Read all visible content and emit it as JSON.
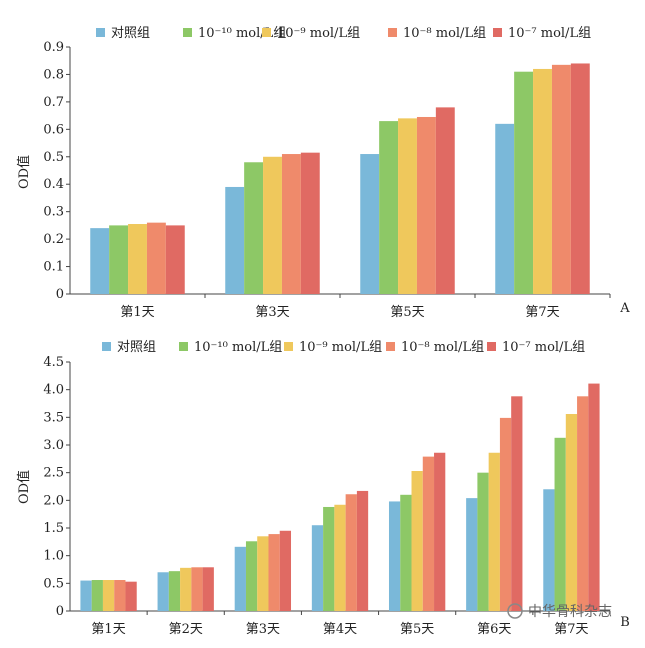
{
  "chart_data": [
    {
      "type": "bar",
      "panel_label": "A",
      "ylabel": "OD值",
      "ylim": [
        0,
        0.9
      ],
      "yticks": [
        "0",
        "0.1",
        "0.2",
        "0.3",
        "0.4",
        "0.5",
        "0.6",
        "0.7",
        "0.8",
        "0.9"
      ],
      "categories": [
        "第1天",
        "第3天",
        "第5天",
        "第7天"
      ],
      "legend_position": "top",
      "series": [
        {
          "name": "对照组",
          "color": "#7ab8d9",
          "values": [
            0.24,
            0.39,
            0.51,
            0.62
          ]
        },
        {
          "name": "10⁻¹⁰ mol/L组",
          "color": "#8dc866",
          "values": [
            0.25,
            0.48,
            0.63,
            0.81
          ]
        },
        {
          "name": "10⁻⁹ mol/L组",
          "color": "#efc85c",
          "values": [
            0.255,
            0.5,
            0.64,
            0.82
          ]
        },
        {
          "name": "10⁻⁸ mol/L组",
          "color": "#ef8a6b",
          "values": [
            0.26,
            0.51,
            0.645,
            0.835
          ]
        },
        {
          "name": "10⁻⁷ mol/L组",
          "color": "#e06a63",
          "values": [
            0.25,
            0.515,
            0.68,
            0.84
          ]
        }
      ]
    },
    {
      "type": "bar",
      "panel_label": "B",
      "ylabel": "OD值",
      "ylim": [
        0,
        4.5
      ],
      "yticks": [
        "0",
        "0.5",
        "1.0",
        "1.5",
        "2.0",
        "2.5",
        "3.0",
        "3.5",
        "4.0",
        "4.5"
      ],
      "categories": [
        "第1天",
        "第2天",
        "第3天",
        "第4天",
        "第5天",
        "第6天",
        "第7天"
      ],
      "legend_position": "top",
      "series": [
        {
          "name": "对照组",
          "color": "#7ab8d9",
          "values": [
            0.55,
            0.7,
            1.16,
            1.55,
            1.98,
            2.04,
            2.2
          ]
        },
        {
          "name": "10⁻¹⁰ mol/L组",
          "color": "#8dc866",
          "values": [
            0.56,
            0.72,
            1.26,
            1.88,
            2.1,
            2.5,
            3.13
          ]
        },
        {
          "name": "10⁻⁹ mol/L组",
          "color": "#efc85c",
          "values": [
            0.56,
            0.78,
            1.35,
            1.92,
            2.53,
            2.86,
            3.56
          ]
        },
        {
          "name": "10⁻⁸ mol/L组",
          "color": "#ef8a6b",
          "values": [
            0.56,
            0.79,
            1.39,
            2.11,
            2.79,
            3.49,
            3.88
          ]
        },
        {
          "name": "10⁻⁷ mol/L组",
          "color": "#e06a63",
          "values": [
            0.53,
            0.79,
            1.45,
            2.17,
            2.86,
            3.88,
            4.11
          ]
        }
      ]
    }
  ],
  "watermark": {
    "text": "中华骨科杂志"
  }
}
